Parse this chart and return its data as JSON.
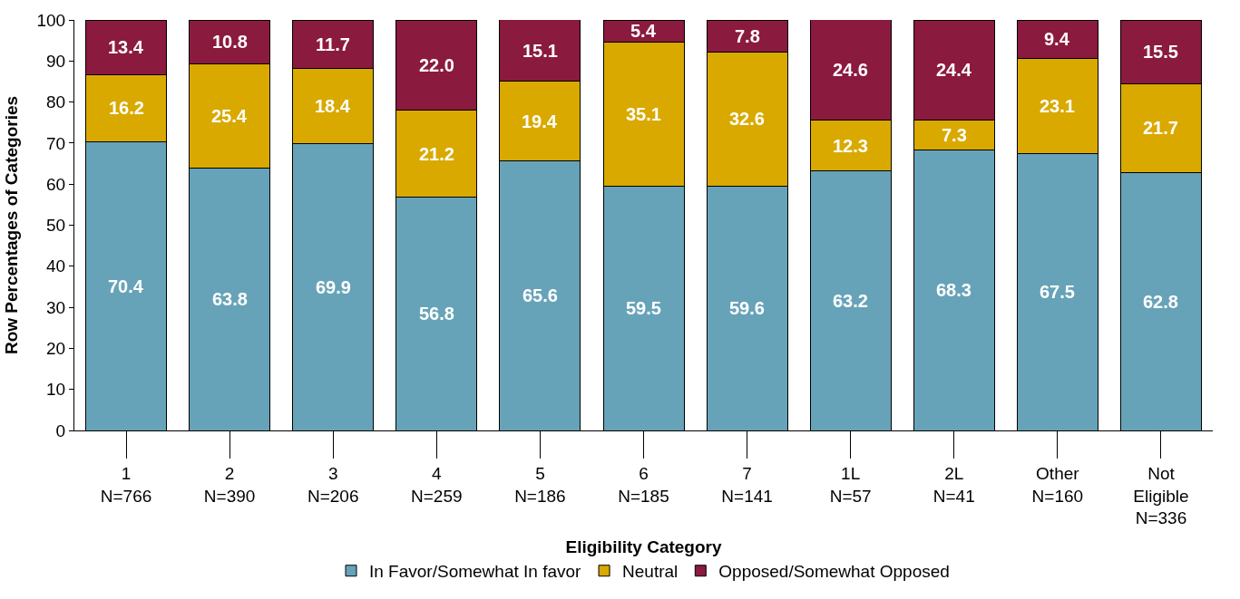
{
  "chart_data": {
    "type": "bar",
    "stacked": true,
    "xlabel": "Eligibility Category",
    "ylabel": "Row Percentages of Categories",
    "categories": [
      "1\nN=766",
      "2\nN=390",
      "3\nN=206",
      "4\nN=259",
      "5\nN=186",
      "6\nN=185",
      "7\nN=141",
      "1L\nN=57",
      "2L\nN=41",
      "Other\nN=160",
      "Not\nEligible\nN=336"
    ],
    "series": [
      {
        "name": "In Favor/Somewhat In favor",
        "color": "#67a3b8",
        "values": [
          70.4,
          63.8,
          69.9,
          56.8,
          65.6,
          59.5,
          59.6,
          63.2,
          68.3,
          67.5,
          62.8
        ],
        "value_labels": [
          "70.4",
          "63.8",
          "69.9",
          "56.8",
          "65.6",
          "59.5",
          "59.6",
          "63.2",
          "68.3",
          "67.5",
          "62.8"
        ]
      },
      {
        "name": "Neutral",
        "color": "#d9a900",
        "values": [
          16.2,
          25.4,
          18.4,
          21.2,
          19.4,
          35.1,
          32.6,
          12.3,
          7.3,
          23.1,
          21.7
        ],
        "value_labels": [
          "16.2",
          "25.4",
          "18.4",
          "21.2",
          "19.4",
          "35.1",
          "32.6",
          "12.3",
          "7.3",
          "23.1",
          "21.7"
        ]
      },
      {
        "name": "Opposed/Somewhat Opposed",
        "color": "#8b1a3f",
        "values": [
          13.4,
          10.8,
          11.7,
          22.0,
          15.1,
          5.4,
          7.8,
          24.6,
          24.4,
          9.4,
          15.5
        ],
        "value_labels": [
          "13.4",
          "10.8",
          "11.7",
          "22.0",
          "15.1",
          "5.4",
          "7.8",
          "24.6",
          "24.4",
          "9.4",
          "15.5"
        ]
      }
    ],
    "ylim": [
      0,
      100
    ],
    "yticks": [
      0,
      10,
      20,
      30,
      40,
      50,
      60,
      70,
      80,
      90,
      100
    ],
    "legend": "bottom"
  }
}
